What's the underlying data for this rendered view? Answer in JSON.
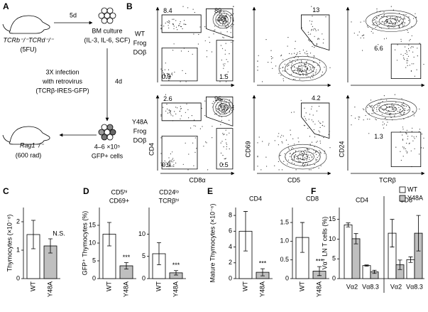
{
  "panel_a": {
    "letter": "A",
    "donor": [
      "TCRb⁻/⁻TCRd⁻/⁻",
      "(5FU)"
    ],
    "step1": "5d",
    "culture": [
      "BM culture",
      "(IL-3, IL-6, SCF)"
    ],
    "infection": [
      "3X infection",
      "with retrovirus",
      "(TCRβ-IRES-GFP)"
    ],
    "step2": "4d",
    "cells": [
      "4–6 ×10⁵",
      "GFP+ cells"
    ],
    "recipient": [
      "Rag1⁻/⁻",
      "(600 rad)"
    ]
  },
  "panel_b": {
    "letter": "B",
    "x_labels": [
      "CD8α",
      "CD5",
      "TCRβ"
    ],
    "y_labels": [
      "CD4",
      "CD69",
      "CD24"
    ],
    "rows": [
      {
        "labels": [
          "WT",
          "Frog",
          "DOβ"
        ],
        "gates": [
          [
            8.4,
            89,
            0.9,
            1.5
          ],
          [
            13
          ],
          [
            6.6
          ]
        ]
      },
      {
        "labels": [
          "Y48A",
          "Frog",
          "DOβ"
        ],
        "gates": [
          [
            2.6,
            96,
            0.9,
            0.5
          ],
          [
            4.2
          ],
          [
            1.3
          ]
        ]
      }
    ]
  },
  "chart_data": [
    {
      "type": "bar",
      "panel": "C",
      "ylabel": "Thymocytes (×10⁻⁸)",
      "plots": [
        {
          "categories": [
            "WT",
            "Y48A"
          ],
          "values": [
            1.55,
            1.15
          ],
          "errors": [
            0.5,
            0.25
          ],
          "colors": [
            "#ffffff",
            "#bfbfbf"
          ],
          "ylim": [
            0,
            2.5
          ],
          "yticks": [
            0,
            1,
            2
          ],
          "annotation": "N.S."
        }
      ]
    },
    {
      "type": "bar",
      "panel": "D",
      "ylabel": "GFP⁺ Thymocytes (%)",
      "plots": [
        {
          "title": [
            "CD5ʰⁱ",
            "CD69+"
          ],
          "categories": [
            "WT",
            "Y48A"
          ],
          "values": [
            12.5,
            3.6
          ],
          "errors": [
            3.3,
            0.9
          ],
          "colors": [
            "#ffffff",
            "#bfbfbf"
          ],
          "ylim": [
            0,
            20
          ],
          "yticks": [
            0,
            5,
            10,
            15
          ],
          "annotation": "***"
        },
        {
          "title": [
            "CD24ˡᵒ",
            "TCRβʰⁱ"
          ],
          "categories": [
            "WT",
            "Y48A"
          ],
          "values": [
            5.6,
            1.3
          ],
          "errors": [
            2.5,
            0.5
          ],
          "colors": [
            "#ffffff",
            "#bfbfbf"
          ],
          "ylim": [
            0,
            16
          ],
          "yticks": [
            0,
            5,
            10
          ],
          "annotation": "***"
        }
      ]
    },
    {
      "type": "bar",
      "panel": "E",
      "ylabel": "Mature Thymocytes (×10⁻⁶)",
      "plots": [
        {
          "title": [
            "CD4"
          ],
          "categories": [
            "WT",
            "Y48A"
          ],
          "values": [
            6.0,
            0.8
          ],
          "errors": [
            2.5,
            0.45
          ],
          "colors": [
            "#ffffff",
            "#bfbfbf"
          ],
          "ylim": [
            0,
            9
          ],
          "yticks": [
            0,
            2,
            4,
            6,
            8
          ],
          "annotation": "***"
        },
        {
          "title": [
            "CD8"
          ],
          "categories": [
            "WT",
            "Y48A"
          ],
          "values": [
            1.1,
            0.2
          ],
          "errors": [
            0.4,
            0.12
          ],
          "colors": [
            "#ffffff",
            "#bfbfbf"
          ],
          "ylim": [
            0,
            1.9
          ],
          "yticks": [
            0,
            0.5,
            {
              "value": 1,
              "label": "1.0"
            },
            1.5
          ],
          "annotation": "***"
        }
      ]
    },
    {
      "type": "grouped_bar",
      "panel": "F",
      "ylabel": "Vα⁺ LN T cells (%)",
      "ylim": [
        0,
        18
      ],
      "yticks": [
        0,
        5,
        10,
        15
      ],
      "legend": "top-right",
      "series": [
        {
          "name": "WT",
          "color": "#ffffff"
        },
        {
          "name": "Y48A",
          "color": "#bfbfbf"
        }
      ],
      "groups": [
        {
          "title": "CD4",
          "categories": [
            "Vα2",
            "Vα8.3"
          ],
          "values": [
            [
              13.6,
              3.3
            ],
            [
              10.1,
              1.7
            ]
          ],
          "errors": [
            [
              0.5,
              0.15
            ],
            [
              1.3,
              0.4
            ]
          ]
        },
        {
          "title": "CD8",
          "categories": [
            "Vα2",
            "Vα8.3"
          ],
          "values": [
            [
              11.5,
              4.8
            ],
            [
              3.5,
              11.5
            ]
          ],
          "errors": [
            [
              3.5,
              0.7
            ],
            [
              1.2,
              4.5
            ]
          ]
        }
      ]
    }
  ]
}
